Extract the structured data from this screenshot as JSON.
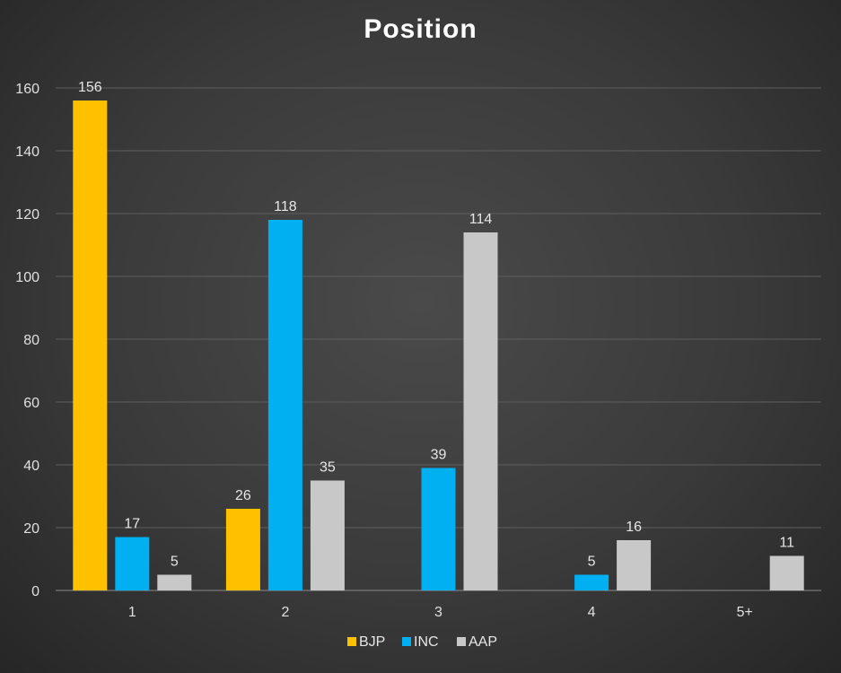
{
  "chart_data": {
    "type": "bar",
    "title": "Position",
    "categories": [
      "1",
      "2",
      "3",
      "4",
      "5+"
    ],
    "series": [
      {
        "name": "BJP",
        "color": "#ffc000",
        "values": [
          156,
          26,
          0,
          0,
          0
        ],
        "labels": [
          "156",
          "26",
          "",
          "",
          ""
        ]
      },
      {
        "name": "INC",
        "color": "#00b0f0",
        "values": [
          17,
          118,
          39,
          5,
          0
        ],
        "labels": [
          "17",
          "118",
          "39",
          "5",
          ""
        ]
      },
      {
        "name": "AAP",
        "color": "#c8c8c8",
        "values": [
          5,
          35,
          114,
          16,
          11
        ],
        "labels": [
          "5",
          "35",
          "114",
          "16",
          "11"
        ]
      }
    ],
    "ylim": [
      0,
      160
    ],
    "yticks": [
      0,
      20,
      40,
      60,
      80,
      100,
      120,
      140,
      160
    ],
    "grid": true,
    "legend_position": "bottom"
  }
}
